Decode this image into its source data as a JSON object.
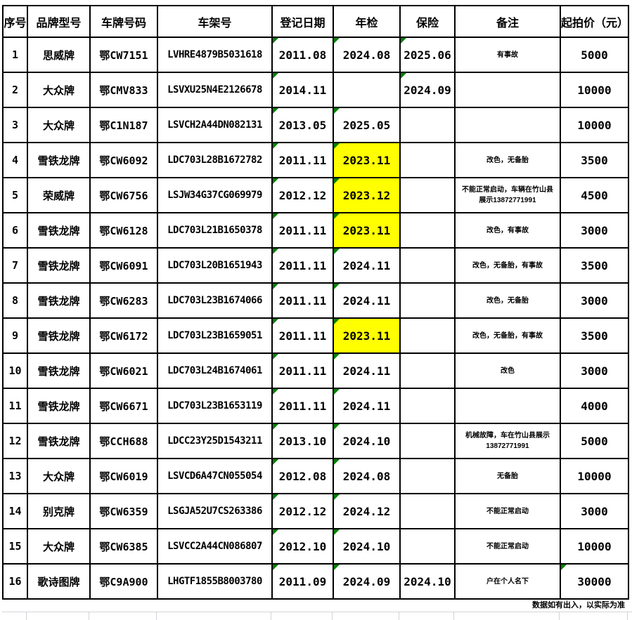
{
  "note": "数据如有出入，以实际为准",
  "colors": {
    "inspection_highlight": "#FFFF00",
    "error_triangle": "#008000",
    "border": "#000000",
    "gridline": "#d0d4d9"
  },
  "columns": [
    {
      "key": "seq",
      "label": "序号"
    },
    {
      "key": "brand",
      "label": "品牌型号"
    },
    {
      "key": "plate",
      "label": "车牌号码"
    },
    {
      "key": "vin",
      "label": "车架号"
    },
    {
      "key": "reg",
      "label": "登记日期"
    },
    {
      "key": "inspection",
      "label": "年检"
    },
    {
      "key": "insurance",
      "label": "保险"
    },
    {
      "key": "remark",
      "label": "备注"
    },
    {
      "key": "price",
      "label": "起拍价（元）"
    }
  ],
  "rows": [
    {
      "seq": "1",
      "brand": "思威牌",
      "plate": "鄂CW7151",
      "vin": "LVHRE4879B5031618",
      "reg": "2011.08",
      "inspection": "2024.08",
      "insurance": "2025.06",
      "remark": "有事故",
      "price": "5000",
      "inspection_highlight": false,
      "triangles": [
        "reg",
        "inspection",
        "insurance"
      ]
    },
    {
      "seq": "2",
      "brand": "大众牌",
      "plate": "鄂CMV833",
      "vin": "LSVXU25N4E2126678",
      "reg": "2014.11",
      "inspection": "",
      "insurance": "2024.09",
      "remark": "",
      "price": "10000",
      "inspection_highlight": false,
      "triangles": [
        "reg",
        "insurance"
      ]
    },
    {
      "seq": "3",
      "brand": "大众牌",
      "plate": "鄂C1N187",
      "vin": "LSVCH2A44DN082131",
      "reg": "2013.05",
      "inspection": "2025.05",
      "insurance": "",
      "remark": "",
      "price": "10000",
      "inspection_highlight": false,
      "triangles": [
        "reg",
        "inspection"
      ]
    },
    {
      "seq": "4",
      "brand": "雪铁龙牌",
      "plate": "鄂CW6092",
      "vin": "LDC703L28B1672782",
      "reg": "2011.11",
      "inspection": "2023.11",
      "insurance": "",
      "remark": "改色，无备胎",
      "price": "3500",
      "inspection_highlight": true,
      "triangles": [
        "reg",
        "inspection"
      ]
    },
    {
      "seq": "5",
      "brand": "荣威牌",
      "plate": "鄂CW6756",
      "vin": "LSJW34G37CG069979",
      "reg": "2012.12",
      "inspection": "2023.12",
      "insurance": "",
      "remark": "不能正常启动，车辆在竹山县展示13872771991",
      "price": "4500",
      "inspection_highlight": true,
      "triangles": [
        "reg",
        "inspection"
      ]
    },
    {
      "seq": "6",
      "brand": "雪铁龙牌",
      "plate": "鄂CW6128",
      "vin": "LDC703L21B1650378",
      "reg": "2011.11",
      "inspection": "2023.11",
      "insurance": "",
      "remark": "改色，有事故",
      "price": "3000",
      "inspection_highlight": true,
      "triangles": [
        "reg",
        "inspection"
      ]
    },
    {
      "seq": "7",
      "brand": "雪铁龙牌",
      "plate": "鄂CW6091",
      "vin": "LDC703L20B1651943",
      "reg": "2011.11",
      "inspection": "2024.11",
      "insurance": "",
      "remark": "改色，无备胎，有事故",
      "price": "3500",
      "inspection_highlight": false,
      "triangles": [
        "reg",
        "inspection"
      ]
    },
    {
      "seq": "8",
      "brand": "雪铁龙牌",
      "plate": "鄂CW6283",
      "vin": "LDC703L23B1674066",
      "reg": "2011.11",
      "inspection": "2024.11",
      "insurance": "",
      "remark": "改色，无备胎",
      "price": "3000",
      "inspection_highlight": false,
      "triangles": [
        "reg",
        "inspection"
      ]
    },
    {
      "seq": "9",
      "brand": "雪铁龙牌",
      "plate": "鄂CW6172",
      "vin": "LDC703L23B1659051",
      "reg": "2011.11",
      "inspection": "2023.11",
      "insurance": "",
      "remark": "改色，无备胎，有事故",
      "price": "3500",
      "inspection_highlight": true,
      "triangles": [
        "reg",
        "inspection"
      ]
    },
    {
      "seq": "10",
      "brand": "雪铁龙牌",
      "plate": "鄂CW6021",
      "vin": "LDC703L24B1674061",
      "reg": "2011.11",
      "inspection": "2024.11",
      "insurance": "",
      "remark": "改色",
      "price": "3000",
      "inspection_highlight": false,
      "triangles": [
        "reg",
        "inspection"
      ]
    },
    {
      "seq": "11",
      "brand": "雪铁龙牌",
      "plate": "鄂CW6671",
      "vin": "LDC703L23B1653119",
      "reg": "2011.11",
      "inspection": "2024.11",
      "insurance": "",
      "remark": "",
      "price": "4000",
      "inspection_highlight": false,
      "triangles": [
        "reg",
        "inspection"
      ]
    },
    {
      "seq": "12",
      "brand": "雪铁龙牌",
      "plate": "鄂CCH688",
      "vin": "LDCC23Y25D1543211",
      "reg": "2013.10",
      "inspection": "2024.10",
      "insurance": "",
      "remark": "机械故障，车在竹山县展示13872771991",
      "price": "5000",
      "inspection_highlight": false,
      "triangles": [
        "reg",
        "inspection"
      ]
    },
    {
      "seq": "13",
      "brand": "大众牌",
      "plate": "鄂CW6019",
      "vin": "LSVCD6A47CN055054",
      "reg": "2012.08",
      "inspection": "2024.08",
      "insurance": "",
      "remark": "无备胎",
      "price": "10000",
      "inspection_highlight": false,
      "triangles": [
        "reg",
        "inspection"
      ]
    },
    {
      "seq": "14",
      "brand": "别克牌",
      "plate": "鄂CW6359",
      "vin": "LSGJA52U7CS263386",
      "reg": "2012.12",
      "inspection": "2024.12",
      "insurance": "",
      "remark": "不能正常启动",
      "price": "3000",
      "inspection_highlight": false,
      "triangles": [
        "reg",
        "inspection"
      ]
    },
    {
      "seq": "15",
      "brand": "大众牌",
      "plate": "鄂CW6385",
      "vin": "LSVCC2A44CN086807",
      "reg": "2012.10",
      "inspection": "2024.10",
      "insurance": "",
      "remark": "不能正常启动",
      "price": "10000",
      "inspection_highlight": false,
      "triangles": [
        "reg",
        "inspection"
      ]
    },
    {
      "seq": "16",
      "brand": "歌诗图牌",
      "plate": "鄂C9A900",
      "vin": "LHGTF1855B8003780",
      "reg": "2011.09",
      "inspection": "2024.09",
      "insurance": "2024.10",
      "remark": "户在个人名下",
      "price": "30000",
      "inspection_highlight": false,
      "triangles": [
        "reg",
        "inspection",
        "price"
      ]
    }
  ]
}
